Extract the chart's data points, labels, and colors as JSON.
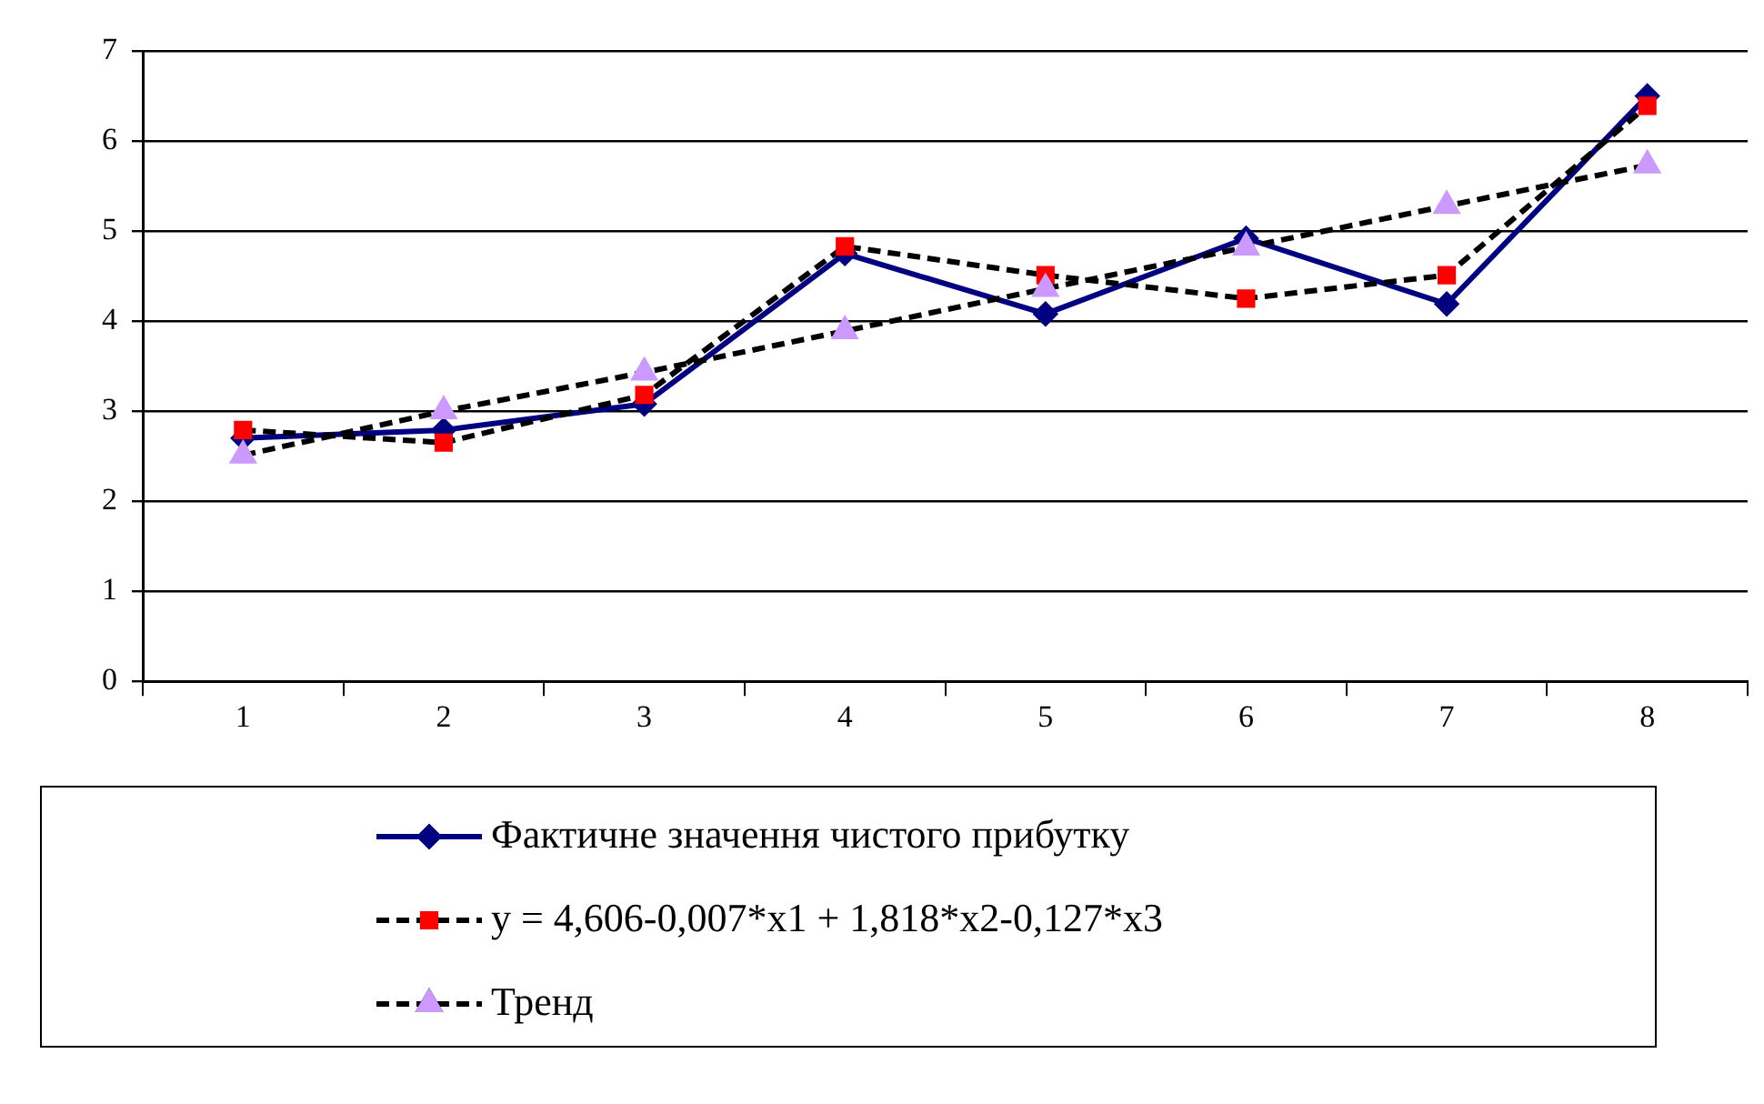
{
  "chart_data": {
    "type": "line",
    "categories": [
      "1",
      "2",
      "3",
      "4",
      "5",
      "6",
      "7",
      "8"
    ],
    "ylim": [
      0,
      7
    ],
    "yticks": [
      0,
      1,
      2,
      3,
      4,
      5,
      6,
      7
    ],
    "grid": "y",
    "legend": "bottom",
    "series": [
      {
        "name": "Фактичне значення чистого прибутку",
        "color": "#000080",
        "marker": "diamond",
        "line_style": "solid",
        "values": [
          2.7,
          2.79,
          3.08,
          4.75,
          4.08,
          4.92,
          4.19,
          6.5
        ]
      },
      {
        "name": "y = 4,606-0,007*x1 + 1,818*x2-0,127*x3",
        "color": "#000000",
        "colors": [
          "#ff0000",
          "#ff0000",
          "#ff0000",
          "#ff0000",
          "#ff0000",
          "#ff0000",
          "#ff0000",
          "#ff0000"
        ],
        "marker": "square",
        "line_style": "dashed",
        "values": [
          2.79,
          2.65,
          3.18,
          4.83,
          4.51,
          4.25,
          4.51,
          6.39
        ]
      },
      {
        "name": "Тренд",
        "color": "#000000",
        "colors": [
          "#cc99ff",
          "#cc99ff",
          "#cc99ff",
          "#cc99ff",
          "#cc99ff",
          "#cc99ff",
          "#cc99ff",
          "#cc99ff"
        ],
        "marker": "triangle",
        "line_style": "dashed",
        "values": [
          2.51,
          3.0,
          3.43,
          3.89,
          4.36,
          4.82,
          5.28,
          5.73
        ]
      }
    ]
  }
}
